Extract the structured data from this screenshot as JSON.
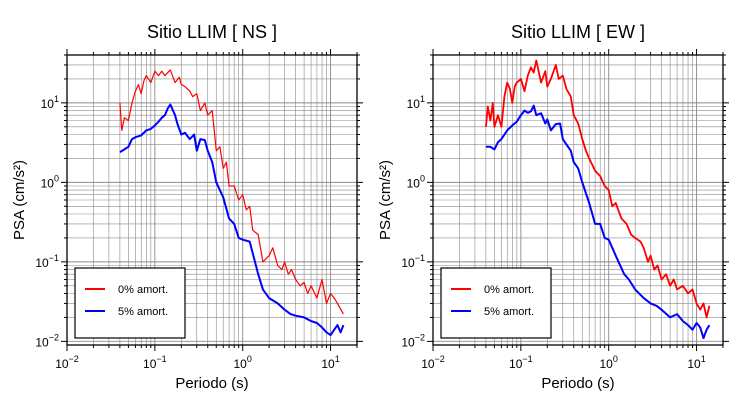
{
  "chart_data": [
    {
      "type": "line",
      "title": "Sitio LLIM [ NS ]",
      "xlabel": "Periodo (s)",
      "ylabel": "PSA (cm/s²)",
      "xscale": "log",
      "yscale": "log",
      "xlim": [
        0.01,
        20
      ],
      "ylim": [
        0.009,
        40
      ],
      "grid": true,
      "legend_position": "bottom-left",
      "xticks": [
        {
          "value": 0.01,
          "base": "10",
          "exp": "−2"
        },
        {
          "value": 0.1,
          "base": "10",
          "exp": "−1"
        },
        {
          "value": 1,
          "base": "10",
          "exp": "0"
        },
        {
          "value": 10,
          "base": "10",
          "exp": "1"
        }
      ],
      "yticks": [
        {
          "value": 0.01,
          "base": "10",
          "exp": "−2"
        },
        {
          "value": 0.1,
          "base": "10",
          "exp": "−1"
        },
        {
          "value": 1,
          "base": "10",
          "exp": "0"
        },
        {
          "value": 10,
          "base": "10",
          "exp": "1"
        }
      ],
      "series": [
        {
          "name": "0% amort.",
          "color": "#ff0000",
          "x": [
            0.04,
            0.042,
            0.045,
            0.05,
            0.055,
            0.06,
            0.065,
            0.07,
            0.075,
            0.08,
            0.09,
            0.1,
            0.11,
            0.12,
            0.13,
            0.15,
            0.17,
            0.19,
            0.2,
            0.22,
            0.25,
            0.27,
            0.3,
            0.33,
            0.37,
            0.4,
            0.45,
            0.5,
            0.55,
            0.6,
            0.65,
            0.7,
            0.8,
            0.9,
            1.0,
            1.1,
            1.2,
            1.3,
            1.5,
            1.7,
            2.0,
            2.2,
            2.5,
            2.8,
            3.0,
            3.3,
            3.6,
            4.0,
            4.5,
            5.0,
            5.5,
            6.0,
            7.0,
            8.0,
            9.0,
            10.0,
            11.0,
            12.0,
            14.0
          ],
          "y": [
            10,
            4.5,
            6.5,
            6,
            10,
            14,
            17,
            13,
            19,
            22,
            18,
            25,
            22,
            25,
            22,
            26,
            18,
            21,
            17,
            16,
            14,
            12,
            13,
            8,
            10,
            7,
            8,
            2.5,
            2.8,
            1.5,
            1.8,
            0.9,
            0.9,
            0.6,
            0.7,
            0.45,
            0.5,
            0.25,
            0.22,
            0.1,
            0.12,
            0.15,
            0.09,
            0.08,
            0.1,
            0.07,
            0.08,
            0.06,
            0.05,
            0.055,
            0.04,
            0.05,
            0.035,
            0.06,
            0.03,
            0.04,
            0.035,
            0.03,
            0.022
          ]
        },
        {
          "name": "5% amort.",
          "color": "#0000ff",
          "x": [
            0.04,
            0.045,
            0.05,
            0.055,
            0.06,
            0.07,
            0.08,
            0.09,
            0.1,
            0.11,
            0.12,
            0.13,
            0.14,
            0.15,
            0.17,
            0.18,
            0.2,
            0.22,
            0.25,
            0.28,
            0.3,
            0.33,
            0.37,
            0.4,
            0.45,
            0.5,
            0.6,
            0.7,
            0.8,
            0.9,
            1.0,
            1.2,
            1.5,
            1.7,
            2.0,
            2.5,
            3.0,
            3.5,
            4.0,
            5.0,
            6.0,
            7.0,
            8.0,
            9.0,
            10.0,
            11.0,
            12.0,
            13.0,
            14.0
          ],
          "y": [
            2.4,
            2.6,
            2.8,
            3.5,
            3.7,
            3.9,
            4.5,
            4.7,
            5.2,
            5.8,
            6.5,
            7,
            8.5,
            9.5,
            7,
            5.5,
            4,
            4.2,
            3.5,
            4,
            2.5,
            3.5,
            3.4,
            2.5,
            1.8,
            1,
            0.65,
            0.35,
            0.3,
            0.2,
            0.19,
            0.18,
            0.07,
            0.045,
            0.035,
            0.03,
            0.025,
            0.022,
            0.021,
            0.02,
            0.018,
            0.017,
            0.015,
            0.013,
            0.012,
            0.014,
            0.016,
            0.013,
            0.016
          ]
        }
      ]
    },
    {
      "type": "line",
      "title": "Sitio LLIM [ EW ]",
      "xlabel": "Periodo (s)",
      "ylabel": "PSA (cm/s²)",
      "xscale": "log",
      "yscale": "log",
      "xlim": [
        0.01,
        20
      ],
      "ylim": [
        0.009,
        40
      ],
      "grid": true,
      "legend_position": "bottom-left",
      "xticks": [
        {
          "value": 0.01,
          "base": "10",
          "exp": "−2"
        },
        {
          "value": 0.1,
          "base": "10",
          "exp": "−1"
        },
        {
          "value": 1,
          "base": "10",
          "exp": "0"
        },
        {
          "value": 10,
          "base": "10",
          "exp": "1"
        }
      ],
      "yticks": [
        {
          "value": 0.01,
          "base": "10",
          "exp": "−2"
        },
        {
          "value": 0.1,
          "base": "10",
          "exp": "−1"
        },
        {
          "value": 1,
          "base": "10",
          "exp": "0"
        },
        {
          "value": 10,
          "base": "10",
          "exp": "1"
        }
      ],
      "series": [
        {
          "name": "0% amort.",
          "color": "#ff0000",
          "x": [
            0.04,
            0.042,
            0.045,
            0.048,
            0.05,
            0.055,
            0.06,
            0.065,
            0.07,
            0.075,
            0.08,
            0.085,
            0.09,
            0.1,
            0.11,
            0.12,
            0.13,
            0.14,
            0.15,
            0.17,
            0.19,
            0.2,
            0.22,
            0.25,
            0.27,
            0.3,
            0.33,
            0.37,
            0.4,
            0.45,
            0.5,
            0.55,
            0.6,
            0.7,
            0.8,
            0.9,
            1.0,
            1.1,
            1.2,
            1.4,
            1.6,
            1.8,
            2.0,
            2.3,
            2.5,
            2.8,
            3.0,
            3.3,
            3.6,
            4.0,
            4.5,
            5.0,
            5.5,
            6.0,
            7.0,
            8.0,
            9.0,
            10.0,
            11.0,
            12.0,
            13.0,
            14.0
          ],
          "y": [
            5,
            9,
            6,
            10,
            5,
            7,
            5,
            12,
            18,
            15,
            10,
            16,
            18,
            20,
            14,
            22,
            28,
            24,
            34,
            18,
            25,
            16,
            20,
            30,
            20,
            22,
            15,
            12,
            7,
            5.5,
            3.5,
            2.5,
            2,
            1.4,
            1.2,
            0.9,
            0.8,
            0.5,
            0.55,
            0.35,
            0.3,
            0.22,
            0.2,
            0.18,
            0.15,
            0.1,
            0.12,
            0.08,
            0.09,
            0.06,
            0.07,
            0.05,
            0.06,
            0.045,
            0.05,
            0.04,
            0.045,
            0.03,
            0.025,
            0.03,
            0.02,
            0.028
          ]
        },
        {
          "name": "5% amort.",
          "color": "#0000ff",
          "x": [
            0.04,
            0.045,
            0.05,
            0.055,
            0.06,
            0.07,
            0.08,
            0.09,
            0.1,
            0.11,
            0.12,
            0.13,
            0.14,
            0.15,
            0.17,
            0.19,
            0.2,
            0.22,
            0.25,
            0.28,
            0.3,
            0.33,
            0.37,
            0.4,
            0.45,
            0.5,
            0.6,
            0.7,
            0.8,
            0.9,
            1.0,
            1.2,
            1.5,
            1.7,
            2.0,
            2.5,
            3.0,
            3.5,
            4.0,
            5.0,
            6.0,
            7.0,
            8.0,
            9.0,
            10.0,
            11.0,
            12.0,
            13.0,
            14.0
          ],
          "y": [
            2.8,
            2.8,
            2.6,
            3.2,
            3.5,
            4.5,
            5.2,
            5.8,
            7,
            8,
            7.5,
            7.8,
            9.2,
            7,
            7.4,
            5.5,
            6.2,
            4.5,
            5.4,
            5.5,
            3.5,
            3,
            2.5,
            1.8,
            1.5,
            1,
            0.55,
            0.3,
            0.3,
            0.2,
            0.19,
            0.12,
            0.07,
            0.06,
            0.045,
            0.035,
            0.03,
            0.028,
            0.025,
            0.02,
            0.022,
            0.018,
            0.016,
            0.014,
            0.017,
            0.015,
            0.011,
            0.014,
            0.016
          ]
        }
      ]
    }
  ]
}
